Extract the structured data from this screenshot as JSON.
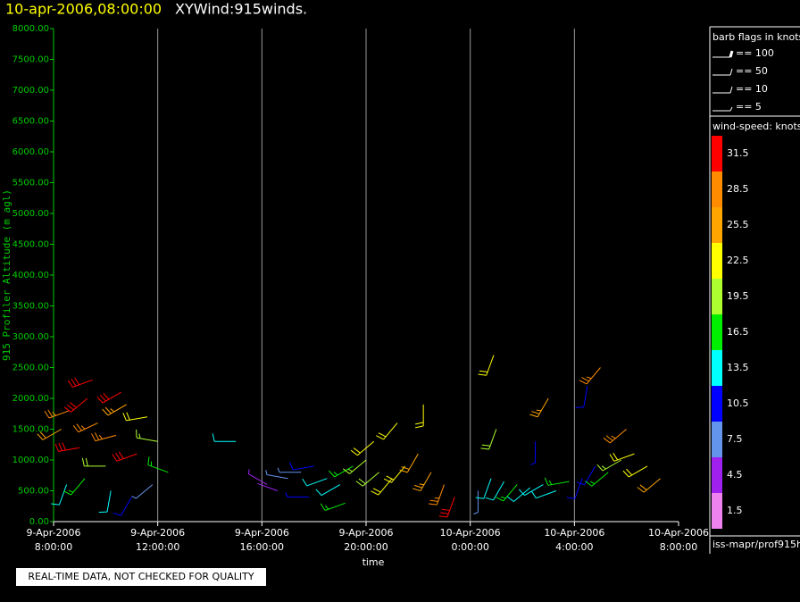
{
  "chart_data": {
    "type": "windbarb",
    "title_time": "10-apr-2006,08:00:00",
    "title": "XYWind:915winds.",
    "y_label": "915 Profiler Altitude (m agl)",
    "x_label": "time",
    "ylim": [
      0,
      8000
    ],
    "yticks": [
      {
        "value": 0,
        "label": "0.00"
      },
      {
        "value": 500,
        "label": "500.00"
      },
      {
        "value": 1000,
        "label": "1000.00"
      },
      {
        "value": 1500,
        "label": "1500.00"
      },
      {
        "value": 2000,
        "label": "2000.00"
      },
      {
        "value": 2500,
        "label": "2500.00"
      },
      {
        "value": 3000,
        "label": "3000.00"
      },
      {
        "value": 3500,
        "label": "3500.00"
      },
      {
        "value": 4000,
        "label": "4000.00"
      },
      {
        "value": 4500,
        "label": "4500.00"
      },
      {
        "value": 5000,
        "label": "5000.00"
      },
      {
        "value": 5500,
        "label": "5500.00"
      },
      {
        "value": 6000,
        "label": "6000.00"
      },
      {
        "value": 6500,
        "label": "6500.00"
      },
      {
        "value": 7000,
        "label": "7000.00"
      },
      {
        "value": 7500,
        "label": "7500.00"
      },
      {
        "value": 8000,
        "label": "8000.00"
      }
    ],
    "xlim": [
      0,
      24
    ],
    "xticks": [
      {
        "value": 0,
        "label": "9-Apr-2006 8:00:00"
      },
      {
        "value": 4,
        "label": "9-Apr-2006 12:00:00"
      },
      {
        "value": 8,
        "label": "9-Apr-2006 16:00:00"
      },
      {
        "value": 12,
        "label": "9-Apr-2006 20:00:00"
      },
      {
        "value": 16,
        "label": "10-Apr-2006 0:00:00"
      },
      {
        "value": 20,
        "label": "10-Apr-2006 4:00:00"
      },
      {
        "value": 24,
        "label": "10-Apr-2006 8:00:00"
      }
    ],
    "barbs": {
      "x": [
        0.3,
        0.6,
        1.0,
        1.3,
        1.7,
        2.0,
        2.4,
        2.8,
        3.2,
        3.6,
        4.0,
        4.4,
        0.5,
        1.2,
        2.2,
        3.0,
        3.8,
        1.5,
        2.6,
        7.0,
        8.2,
        8.6,
        9.0,
        9.5,
        10.0,
        10.5,
        11.0,
        11.5,
        12.0,
        12.5,
        13.0,
        13.5,
        14.0,
        14.5,
        15.0,
        15.4,
        12.3,
        13.2,
        14.2,
        9.8,
        11.2,
        16.3,
        16.8,
        17.3,
        17.8,
        18.3,
        18.8,
        19.3,
        19.8,
        20.3,
        20.8,
        21.3,
        21.8,
        22.3,
        22.8,
        23.3,
        17.0,
        19.0,
        20.5,
        22.0,
        18.5,
        21.0,
        16.9
      ],
      "altitude": [
        1500,
        1800,
        1200,
        2000,
        1600,
        900,
        1400,
        1900,
        1100,
        1700,
        1300,
        800,
        600,
        700,
        500,
        400,
        600,
        2300,
        2100,
        1300,
        600,
        500,
        700,
        800,
        900,
        700,
        600,
        900,
        1000,
        800,
        700,
        900,
        1100,
        800,
        600,
        400,
        1300,
        1600,
        1900,
        400,
        300,
        500,
        700,
        650,
        600,
        550,
        600,
        500,
        650,
        700,
        900,
        800,
        1000,
        1100,
        900,
        700,
        1500,
        2000,
        2200,
        1500,
        1300,
        2500,
        2700
      ],
      "speed": [
        24,
        28,
        30,
        31,
        27,
        20,
        29,
        26,
        32,
        22,
        18,
        15,
        12,
        16,
        14,
        10,
        8,
        33,
        30,
        12,
        5,
        4,
        6,
        8,
        10,
        12,
        14,
        17,
        19,
        20,
        22,
        23,
        24,
        26,
        29,
        32,
        21,
        23,
        22,
        9,
        15,
        8,
        13,
        14,
        15,
        14,
        13,
        12,
        16,
        10,
        11,
        17,
        19,
        21,
        23,
        24,
        20,
        25,
        11,
        27,
        9,
        29,
        23
      ],
      "direction": [
        240,
        250,
        260,
        230,
        245,
        270,
        255,
        240,
        250,
        260,
        280,
        290,
        200,
        220,
        190,
        210,
        230,
        250,
        240,
        270,
        300,
        290,
        280,
        270,
        260,
        250,
        240,
        240,
        230,
        230,
        220,
        220,
        210,
        210,
        200,
        200,
        230,
        220,
        180,
        270,
        250,
        180,
        200,
        210,
        220,
        230,
        240,
        250,
        260,
        200,
        210,
        230,
        240,
        250,
        240,
        230,
        200,
        210,
        190,
        230,
        180,
        220,
        200
      ]
    },
    "barb_legend": {
      "title": "barb flags in knots",
      "items": [
        "== 100",
        "== 50",
        "== 10",
        "== 5"
      ]
    },
    "colorbar": {
      "title": "wind-speed: knots",
      "levels": [
        31.5,
        28.5,
        25.5,
        22.5,
        19.5,
        16.5,
        13.5,
        10.5,
        7.5,
        4.5,
        1.5
      ],
      "colors": [
        "#ff0000",
        "#ff8c00",
        "#ffa500",
        "#ffff00",
        "#adff2f",
        "#00ee00",
        "#00ffff",
        "#0000ff",
        "#6495ed",
        "#a020f0",
        "#ee82ee"
      ]
    },
    "source": "iss-mapr/prof915h",
    "footer": "REAL-TIME DATA, NOT CHECKED FOR QUALITY"
  }
}
